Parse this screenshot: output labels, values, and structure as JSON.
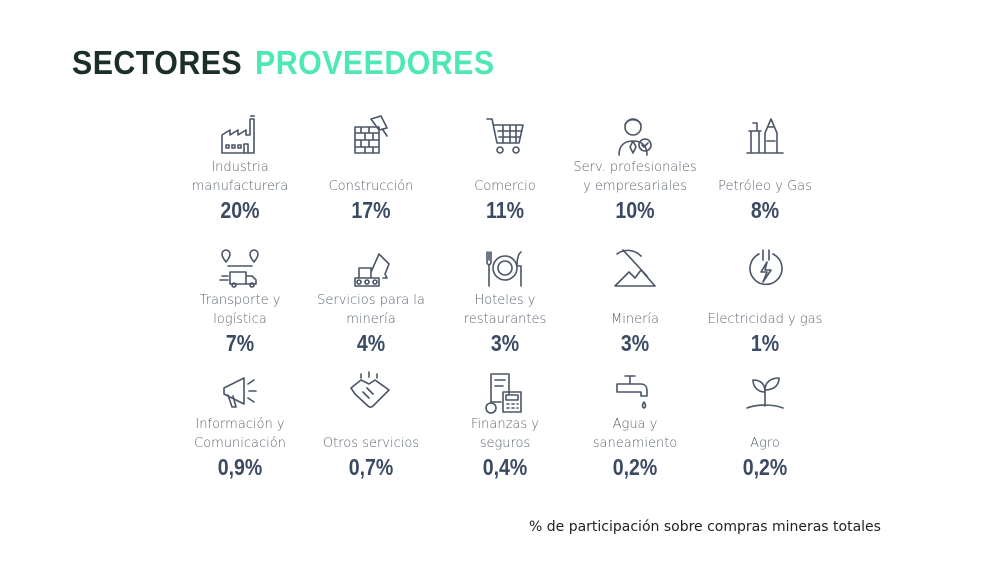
{
  "title": {
    "part1": "SECTORES",
    "part2": "PROVEEDORES"
  },
  "colors": {
    "title_dark": "#1b2e2a",
    "title_accent": "#4de8b4",
    "percent": "#3b4a63",
    "label": "#5b6570"
  },
  "sectors": [
    {
      "icon": "factory-icon",
      "label1": "Industria",
      "label2": "manufacturera",
      "percent": "20%"
    },
    {
      "icon": "brick-wall-trowel-icon",
      "label1": "",
      "label2": "Construcción",
      "percent": "17%"
    },
    {
      "icon": "shopping-cart-icon",
      "label1": "",
      "label2": "Comercio",
      "percent": "11%"
    },
    {
      "icon": "professional-person-icon",
      "label1": "Serv. profesionales",
      "label2": "y empresariales",
      "percent": "10%"
    },
    {
      "icon": "oil-pump-icon",
      "label1": "",
      "label2": "Petróleo y Gas",
      "percent": "8%"
    },
    {
      "icon": "delivery-truck-route-icon",
      "label1": "Transporte y",
      "label2": "logística",
      "percent": "7%"
    },
    {
      "icon": "excavator-icon",
      "label1": "Servicios para la",
      "label2": "minería",
      "percent": "4%"
    },
    {
      "icon": "plate-cutlery-icon",
      "label1": "Hoteles y",
      "label2": "restaurantes",
      "percent": "3%"
    },
    {
      "icon": "pickaxe-mountain-icon",
      "label1": "",
      "label2": "Minería",
      "percent": "3%"
    },
    {
      "icon": "electricity-icon",
      "label1": "",
      "label2": "Electricidad y gas",
      "percent": "1%"
    },
    {
      "icon": "megaphone-icon",
      "label1": "Información y",
      "label2": "Comunicación",
      "percent": "0,9%"
    },
    {
      "icon": "handshake-icon",
      "label1": "",
      "label2": "Otros servicios",
      "percent": "0,7%"
    },
    {
      "icon": "finance-calculator-icon",
      "label1": "Finanzas y",
      "label2": "seguros",
      "percent": "0,4%"
    },
    {
      "icon": "water-tap-icon",
      "label1": "Agua y",
      "label2": "saneamiento",
      "percent": "0,2%"
    },
    {
      "icon": "plant-sprout-icon",
      "label1": "",
      "label2": "Agro",
      "percent": "0,2%"
    }
  ],
  "footnote": "% de participación sobre compras mineras totales"
}
